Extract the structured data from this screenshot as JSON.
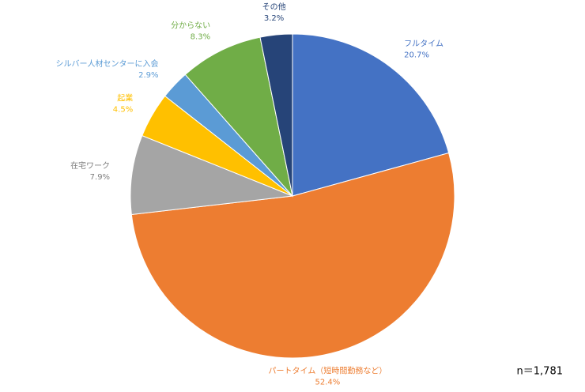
{
  "chart_data": {
    "type": "pie",
    "categories": [
      "フルタイム",
      "パートタイム（短時間勤務など）",
      "在宅ワーク",
      "起業",
      "シルバー人材センターに入会",
      "分からない",
      "その他"
    ],
    "values": [
      20.7,
      52.4,
      7.9,
      4.5,
      2.9,
      8.3,
      3.2
    ],
    "value_labels": [
      "20.7%",
      "52.4%",
      "7.9%",
      "4.5%",
      "2.9%",
      "8.3%",
      "3.2%"
    ],
    "colors": [
      "#4472c4",
      "#ed7d31",
      "#a5a5a5",
      "#ffc000",
      "#5b9bd5",
      "#70ad47",
      "#264478"
    ],
    "annotation": "n＝1,781"
  }
}
